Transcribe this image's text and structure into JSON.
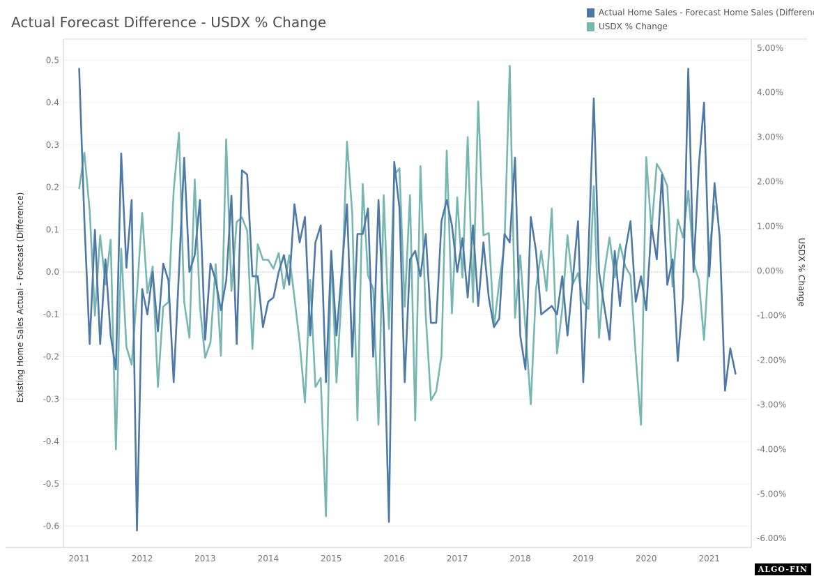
{
  "title": "Actual Forecast Difference - USDX % Change",
  "legend": [
    {
      "label": "Actual Home Sales - Forecast Home Sales (Difference)",
      "color": "#4e79a7"
    },
    {
      "label": "USDX % Change",
      "color": "#76b7b2"
    }
  ],
  "watermark": "ALGO-FIN",
  "chart_data": {
    "type": "line",
    "title": "Actual Forecast Difference - USDX % Change",
    "x_tick_labels": [
      "2011",
      "2012",
      "2013",
      "2014",
      "2015",
      "2016",
      "2017",
      "2018",
      "2019",
      "2020",
      "2021"
    ],
    "xlim": [
      "2010-10",
      "2021-09"
    ],
    "ylabel": "Existing Home Sales Actual - Forecast (Difference)",
    "ylim": [
      -0.65,
      0.55
    ],
    "y_ticks": [
      0.5,
      0.4,
      0.3,
      0.2,
      0.1,
      0.0,
      -0.1,
      -0.2,
      -0.3,
      -0.4,
      -0.5,
      -0.6
    ],
    "y_tick_labels": [
      "0.5",
      "0.4",
      "0.3",
      "0.2",
      "0.1",
      "0.0",
      "-0.1",
      "-0.2",
      "-0.3",
      "-0.4",
      "-0.5",
      "-0.6"
    ],
    "y2label": "USDX % Change",
    "y2lim": [
      -6.2,
      5.2
    ],
    "y2_ticks": [
      5,
      4,
      3,
      2,
      1,
      0,
      -1,
      -2,
      -3,
      -4,
      -5,
      -6
    ],
    "y2_tick_labels": [
      "5.00%",
      "4.00%",
      "3.00%",
      "2.00%",
      "1.00%",
      "0.00%",
      "-1.00%",
      "-2.00%",
      "-3.00%",
      "-4.00%",
      "-5.00%",
      "-6.00%"
    ],
    "zero_line": true,
    "series": [
      {
        "name": "Actual Home Sales - Forecast Home Sales (Difference)",
        "color": "#4e79a7",
        "axis": "left",
        "x_start": "2011-01",
        "values": [
          0.48,
          0.12,
          -0.17,
          0.1,
          -0.17,
          0.03,
          -0.15,
          -0.23,
          0.28,
          0.01,
          0.17,
          -0.61,
          -0.04,
          -0.1,
          0.0,
          -0.14,
          0.02,
          -0.02,
          -0.26,
          0.0,
          0.27,
          0.0,
          0.04,
          0.17,
          -0.16,
          0.02,
          -0.02,
          -0.09,
          -0.02,
          0.18,
          -0.17,
          0.24,
          0.23,
          -0.01,
          -0.01,
          -0.13,
          -0.07,
          -0.06,
          0.0,
          0.04,
          -0.03,
          0.16,
          0.07,
          0.13,
          -0.15,
          0.07,
          0.11,
          -0.26,
          0.05,
          -0.15,
          0.0,
          0.16,
          -0.2,
          0.09,
          0.09,
          0.15,
          -0.2,
          0.17,
          -0.12,
          -0.59,
          0.26,
          0.15,
          -0.26,
          0.03,
          0.05,
          -0.01,
          0.09,
          -0.12,
          -0.12,
          0.12,
          0.17,
          0.11,
          0.0,
          0.08,
          -0.06,
          0.11,
          -0.08,
          0.07,
          -0.06,
          -0.13,
          -0.11,
          0.09,
          0.07,
          0.27,
          -0.15,
          -0.23,
          0.13,
          0.05,
          -0.1,
          -0.09,
          -0.08,
          -0.1,
          -0.01,
          -0.15,
          -0.02,
          0.12,
          -0.26,
          0.05,
          0.41,
          0.0,
          -0.08,
          -0.16,
          0.05,
          -0.08,
          0.05,
          0.12,
          -0.07,
          -0.01,
          -0.09,
          0.11,
          0.03,
          0.23,
          -0.03,
          0.03,
          -0.21,
          -0.06,
          0.48,
          0.0,
          0.25,
          0.4,
          -0.01,
          0.21,
          0.08,
          -0.28,
          -0.18,
          -0.24
        ]
      },
      {
        "name": "USDX % Change",
        "color": "#76b7b2",
        "axis": "right",
        "x_start": "2011-01",
        "values": [
          1.85,
          2.65,
          1.35,
          -1.0,
          0.8,
          -0.3,
          0.7,
          -4.0,
          0.5,
          -1.7,
          -2.1,
          -0.5,
          1.3,
          -0.5,
          0.1,
          -2.6,
          -0.8,
          -0.7,
          1.8,
          3.1,
          -0.7,
          -1.5,
          2.05,
          -0.8,
          -1.95,
          -1.6,
          0.15,
          -1.9,
          2.95,
          -0.45,
          1.1,
          1.2,
          0.9,
          -1.75,
          0.6,
          0.25,
          0.25,
          0.05,
          0.4,
          -0.4,
          0.35,
          -0.6,
          -1.6,
          -2.95,
          -0.2,
          -2.6,
          -2.4,
          -5.5,
          0.45,
          -2.5,
          -0.5,
          2.9,
          1.3,
          -3.35,
          1.95,
          -0.1,
          -0.4,
          -3.45,
          1.7,
          -1.3,
          2.15,
          2.3,
          -0.8,
          1.7,
          -3.35,
          2.35,
          -1.0,
          -2.9,
          -2.7,
          -1.9,
          2.7,
          -0.95,
          1.65,
          -0.15,
          3.0,
          -0.7,
          3.8,
          0.8,
          0.85,
          -1.25,
          -0.25,
          0.6,
          4.6,
          -1.05,
          0.35,
          -1.3,
          -2.99,
          -0.4,
          0.45,
          -0.45,
          1.4,
          -1.85,
          -0.85,
          0.8,
          -0.3,
          -0.05,
          -0.7,
          -0.85,
          1.9,
          -1.5,
          -0.05,
          0.75,
          -0.15,
          0.6,
          0.1,
          -0.1,
          -1.9,
          -3.45,
          2.55,
          0.9,
          2.4,
          2.2,
          1.9,
          -0.35,
          1.15,
          0.75,
          1.8,
          0.2,
          -0.2,
          -1.55,
          0.45,
          1.45
        ]
      }
    ]
  }
}
